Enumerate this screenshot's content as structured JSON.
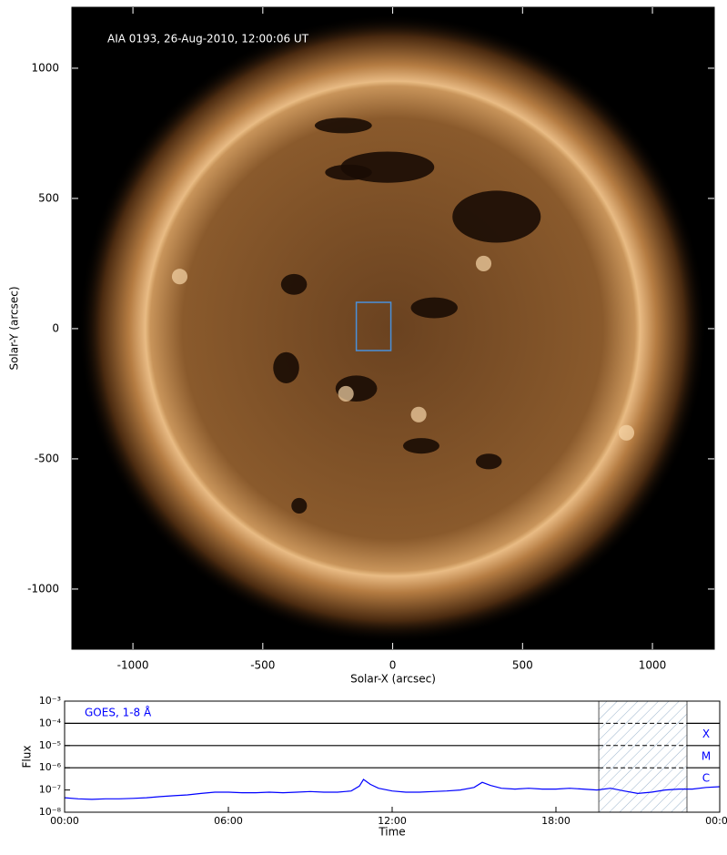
{
  "chart_data": [
    {
      "type": "image",
      "annotation": "AIA 0193, 26-Aug-2010, 12:00:06 UT",
      "xlabel": "Solar-X (arcsec)",
      "ylabel": "Solar-Y (arcsec)",
      "xlim": [
        -1235,
        1238
      ],
      "ylim": [
        -1231,
        1234
      ],
      "xticks": [
        -1000,
        -500,
        0,
        500,
        1000
      ],
      "yticks": [
        -1000,
        -500,
        0,
        500,
        1000
      ],
      "box": {
        "x": [
          -140,
          -7
        ],
        "y": [
          -84,
          101
        ],
        "color": "#4a90d9"
      }
    },
    {
      "type": "line",
      "annotation": "GOES, 1-8 Å",
      "xlabel": "Time",
      "ylabel": "Flux",
      "color": "#0000ff",
      "log_y": true,
      "xlim": [
        0,
        24
      ],
      "ylim": [
        1e-08,
        0.001
      ],
      "xticks": [
        {
          "value": 0,
          "label": "00:00"
        },
        {
          "value": 6,
          "label": "06:00"
        },
        {
          "value": 12,
          "label": "12:00"
        },
        {
          "value": 18,
          "label": "18:00"
        },
        {
          "value": 24,
          "label": "00:00"
        }
      ],
      "yticks": [
        {
          "value": 1e-08,
          "label": "10⁻⁸"
        },
        {
          "value": 1e-07,
          "label": "10⁻⁷"
        },
        {
          "value": 1e-06,
          "label": "10⁻⁶"
        },
        {
          "value": 1e-05,
          "label": "10⁻⁵"
        },
        {
          "value": 0.0001,
          "label": "10⁻⁴"
        },
        {
          "value": 0.001,
          "label": "10⁻³"
        }
      ],
      "levels": [
        {
          "label": "X",
          "value": 0.0001
        },
        {
          "label": "M",
          "value": 1e-05
        },
        {
          "label": "C",
          "value": 1e-06
        }
      ],
      "highlight": [
        19.57,
        22.8
      ],
      "x": [
        0,
        0.5,
        1,
        1.5,
        2,
        2.5,
        3,
        3.5,
        4,
        4.5,
        5,
        5.5,
        6,
        6.5,
        7,
        7.5,
        8,
        8.5,
        9,
        9.5,
        10,
        10.5,
        10.8,
        10.95,
        11.2,
        11.5,
        12,
        12.5,
        13,
        13.5,
        14,
        14.5,
        15,
        15.3,
        15.6,
        16,
        16.5,
        17,
        17.5,
        18,
        18.5,
        19,
        19.5,
        20,
        20.5,
        21,
        21.5,
        22,
        22.5,
        23,
        23.5,
        24
      ],
      "values": [
        4.5e-08,
        4e-08,
        3.8e-08,
        4e-08,
        4e-08,
        4.2e-08,
        4.5e-08,
        5e-08,
        5.5e-08,
        6e-08,
        7e-08,
        8e-08,
        8e-08,
        7.5e-08,
        7.5e-08,
        8e-08,
        7.5e-08,
        8e-08,
        8.5e-08,
        8e-08,
        8e-08,
        9e-08,
        1.5e-07,
        3e-07,
        1.8e-07,
        1.2e-07,
        9e-08,
        8e-08,
        8e-08,
        8.5e-08,
        9e-08,
        1e-07,
        1.3e-07,
        2.2e-07,
        1.6e-07,
        1.2e-07,
        1.1e-07,
        1.2e-07,
        1.1e-07,
        1.1e-07,
        1.2e-07,
        1.1e-07,
        1e-07,
        1.2e-07,
        9e-08,
        7e-08,
        8e-08,
        1e-07,
        1.1e-07,
        1.1e-07,
        1.3e-07,
        1.4e-07
      ]
    }
  ]
}
